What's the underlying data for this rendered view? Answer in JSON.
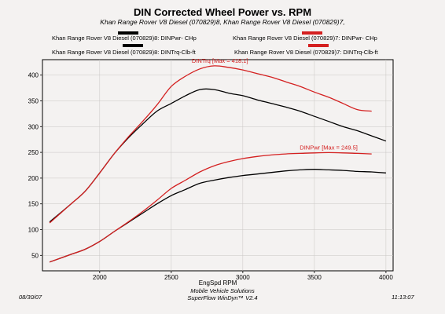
{
  "header": {
    "title": "DIN Corrected Wheel Power vs. RPM",
    "subtitle": "Khan Range Rover V8 Diesel (070829)8, Khan Range Rover V8 Diesel (070829)7,"
  },
  "legend": {
    "items": [
      {
        "label": "Khan Range Rover V8 Diesel (070829)8: DINPwr- CHp",
        "color": "#000000"
      },
      {
        "label": "Khan Range Rover V8 Diesel (070829)7: DINPwr- CHp",
        "color": "#d42020"
      },
      {
        "label": "Khan Range Rover V8 Diesel (070829)8: DINTrq-Clb-ft",
        "color": "#000000"
      },
      {
        "label": "Khan Range Rover V8 Diesel (070829)7: DINTrq-Clb-ft",
        "color": "#d42020"
      }
    ]
  },
  "footer": {
    "date": "08/30/07",
    "time": "11:13:07",
    "line1": "Mobile Vehicle Solutions",
    "line2": "SuperFlow WinDyn™ V2.4"
  },
  "colors": {
    "red": "#d42020",
    "black": "#000000",
    "background": "#f4f2f1"
  },
  "chart_data": {
    "type": "line",
    "title": "DIN Corrected Wheel Power vs. RPM",
    "xlabel": "EngSpd  RPM",
    "ylabel": "",
    "xlim": [
      1600,
      4050
    ],
    "ylim": [
      20,
      430
    ],
    "xticks": [
      2000,
      2500,
      3000,
      3500,
      4000
    ],
    "yticks": [
      50,
      100,
      150,
      200,
      250,
      300,
      350,
      400
    ],
    "grid": true,
    "annotations": [
      {
        "text": "DINTrq [Max = 418.1]",
        "x": 2840,
        "y": 418.1,
        "color": "#d42020"
      },
      {
        "text": "DINPwr [Max = 249.5]",
        "x": 3600,
        "y": 249.5,
        "color": "#d42020"
      }
    ],
    "series": [
      {
        "name": "Khan Range Rover V8 Diesel (070829)8: DINTrq-Clb-ft",
        "color": "#000000",
        "x": [
          1650,
          1800,
          1900,
          2000,
          2100,
          2200,
          2300,
          2400,
          2500,
          2600,
          2700,
          2800,
          2900,
          3000,
          3100,
          3200,
          3300,
          3400,
          3500,
          3600,
          3700,
          3800,
          3900,
          4000
        ],
        "y": [
          115,
          150,
          175,
          210,
          247,
          278,
          305,
          330,
          345,
          360,
          372,
          372,
          365,
          360,
          352,
          345,
          338,
          330,
          320,
          310,
          300,
          292,
          282,
          272
        ]
      },
      {
        "name": "Khan Range Rover V8 Diesel (070829)7: DINTrq-Clb-ft",
        "color": "#d42020",
        "x": [
          1650,
          1800,
          1900,
          2000,
          2100,
          2200,
          2300,
          2400,
          2500,
          2600,
          2700,
          2800,
          2900,
          3000,
          3100,
          3200,
          3300,
          3400,
          3500,
          3600,
          3700,
          3800,
          3900
        ],
        "y": [
          113,
          150,
          175,
          210,
          247,
          280,
          310,
          342,
          378,
          398,
          412,
          418,
          415,
          410,
          403,
          396,
          387,
          378,
          367,
          357,
          345,
          333,
          330
        ]
      },
      {
        "name": "Khan Range Rover V8 Diesel (070829)8: DINPwr- CHp",
        "color": "#000000",
        "x": [
          1650,
          1800,
          1900,
          2000,
          2100,
          2200,
          2300,
          2400,
          2500,
          2600,
          2700,
          2800,
          2900,
          3000,
          3100,
          3200,
          3300,
          3400,
          3500,
          3600,
          3700,
          3800,
          3900,
          4000
        ],
        "y": [
          37,
          52,
          62,
          77,
          96,
          114,
          132,
          150,
          166,
          178,
          190,
          196,
          201,
          205,
          208,
          211,
          214,
          216,
          217,
          216,
          215,
          213,
          212,
          210
        ]
      },
      {
        "name": "Khan Range Rover V8 Diesel (070829)7: DINPwr- CHp",
        "color": "#d42020",
        "x": [
          1650,
          1800,
          1900,
          2000,
          2100,
          2200,
          2300,
          2400,
          2500,
          2600,
          2700,
          2800,
          2900,
          3000,
          3100,
          3200,
          3300,
          3400,
          3500,
          3600,
          3700,
          3800,
          3900
        ],
        "y": [
          37,
          52,
          62,
          77,
          96,
          115,
          135,
          157,
          180,
          196,
          212,
          224,
          232,
          238,
          242,
          245,
          247,
          248,
          249,
          249.5,
          249,
          248,
          247
        ]
      }
    ]
  }
}
